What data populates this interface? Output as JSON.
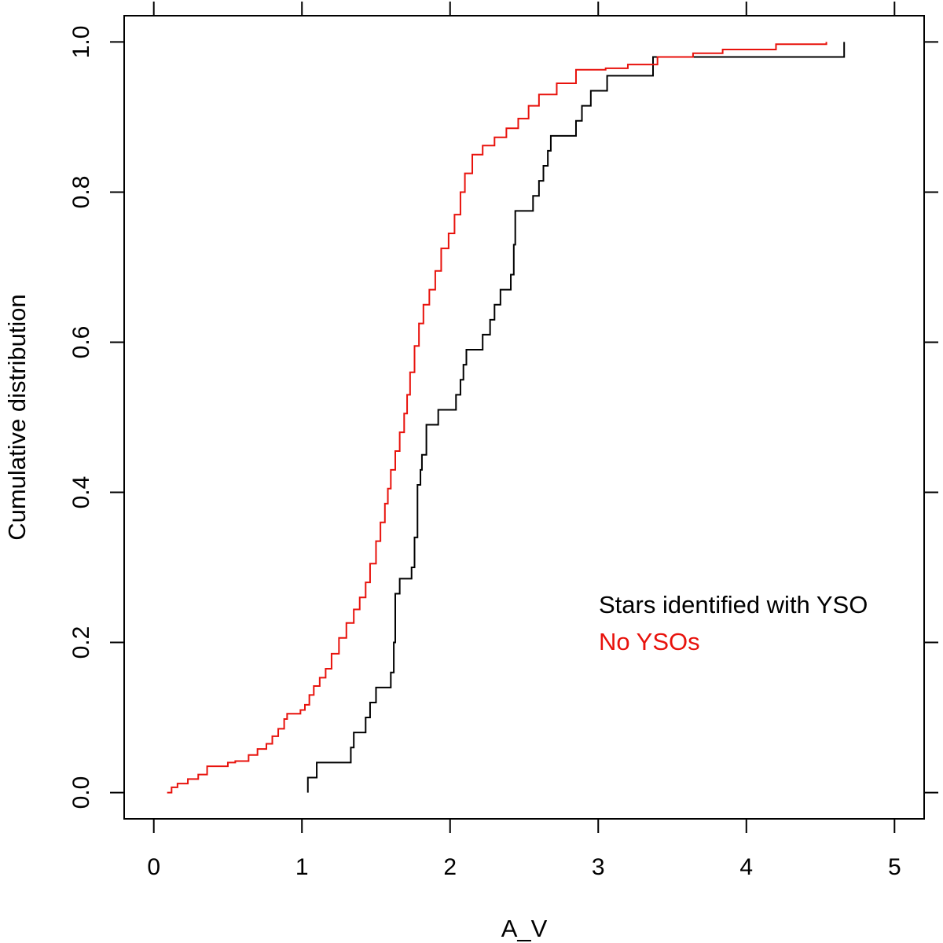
{
  "chart_data": {
    "type": "line",
    "title": "",
    "xlabel": "A_V",
    "ylabel": "Cumulative distribution",
    "xlim": [
      -0.2,
      5.2
    ],
    "ylim": [
      -0.035,
      1.035
    ],
    "xticks": [
      "0",
      "1",
      "2",
      "3",
      "4",
      "5"
    ],
    "yticks": [
      "0.0",
      "0.2",
      "0.4",
      "0.6",
      "0.8",
      "1.0"
    ],
    "grid": false,
    "legend_position": "lower-right",
    "series": [
      {
        "name": "Stars identified with YSO",
        "color": "#000000",
        "points": [
          [
            1.04,
            0.0
          ],
          [
            1.04,
            0.02
          ],
          [
            1.1,
            0.02
          ],
          [
            1.1,
            0.04
          ],
          [
            1.33,
            0.04
          ],
          [
            1.33,
            0.06
          ],
          [
            1.35,
            0.06
          ],
          [
            1.35,
            0.08
          ],
          [
            1.43,
            0.08
          ],
          [
            1.43,
            0.1
          ],
          [
            1.46,
            0.1
          ],
          [
            1.46,
            0.12
          ],
          [
            1.5,
            0.12
          ],
          [
            1.5,
            0.14
          ],
          [
            1.6,
            0.14
          ],
          [
            1.6,
            0.16
          ],
          [
            1.62,
            0.16
          ],
          [
            1.62,
            0.2
          ],
          [
            1.63,
            0.2
          ],
          [
            1.63,
            0.265
          ],
          [
            1.66,
            0.265
          ],
          [
            1.66,
            0.285
          ],
          [
            1.74,
            0.285
          ],
          [
            1.74,
            0.3
          ],
          [
            1.76,
            0.3
          ],
          [
            1.76,
            0.34
          ],
          [
            1.78,
            0.34
          ],
          [
            1.78,
            0.41
          ],
          [
            1.8,
            0.41
          ],
          [
            1.8,
            0.43
          ],
          [
            1.81,
            0.43
          ],
          [
            1.81,
            0.45
          ],
          [
            1.84,
            0.45
          ],
          [
            1.84,
            0.49
          ],
          [
            1.92,
            0.49
          ],
          [
            1.92,
            0.51
          ],
          [
            2.04,
            0.51
          ],
          [
            2.04,
            0.53
          ],
          [
            2.07,
            0.53
          ],
          [
            2.07,
            0.55
          ],
          [
            2.09,
            0.55
          ],
          [
            2.09,
            0.57
          ],
          [
            2.11,
            0.57
          ],
          [
            2.11,
            0.59
          ],
          [
            2.22,
            0.59
          ],
          [
            2.22,
            0.61
          ],
          [
            2.27,
            0.61
          ],
          [
            2.27,
            0.63
          ],
          [
            2.3,
            0.63
          ],
          [
            2.3,
            0.65
          ],
          [
            2.34,
            0.65
          ],
          [
            2.34,
            0.67
          ],
          [
            2.41,
            0.67
          ],
          [
            2.41,
            0.69
          ],
          [
            2.43,
            0.69
          ],
          [
            2.43,
            0.73
          ],
          [
            2.44,
            0.73
          ],
          [
            2.44,
            0.775
          ],
          [
            2.56,
            0.775
          ],
          [
            2.56,
            0.795
          ],
          [
            2.6,
            0.795
          ],
          [
            2.6,
            0.815
          ],
          [
            2.63,
            0.815
          ],
          [
            2.63,
            0.835
          ],
          [
            2.66,
            0.835
          ],
          [
            2.66,
            0.855
          ],
          [
            2.68,
            0.855
          ],
          [
            2.68,
            0.875
          ],
          [
            2.85,
            0.875
          ],
          [
            2.85,
            0.895
          ],
          [
            2.89,
            0.895
          ],
          [
            2.89,
            0.915
          ],
          [
            2.95,
            0.915
          ],
          [
            2.95,
            0.935
          ],
          [
            3.06,
            0.935
          ],
          [
            3.06,
            0.955
          ],
          [
            3.37,
            0.955
          ],
          [
            3.37,
            0.98
          ],
          [
            4.66,
            0.98
          ],
          [
            4.66,
            1.0
          ]
        ]
      },
      {
        "name": "No YSOs",
        "color": "#e8120c",
        "points": [
          [
            0.09,
            0.0
          ],
          [
            0.12,
            0.007
          ],
          [
            0.16,
            0.012
          ],
          [
            0.23,
            0.018
          ],
          [
            0.3,
            0.024
          ],
          [
            0.36,
            0.035
          ],
          [
            0.5,
            0.04
          ],
          [
            0.55,
            0.042
          ],
          [
            0.64,
            0.05
          ],
          [
            0.7,
            0.058
          ],
          [
            0.76,
            0.065
          ],
          [
            0.8,
            0.075
          ],
          [
            0.84,
            0.085
          ],
          [
            0.88,
            0.098
          ],
          [
            0.9,
            0.105
          ],
          [
            0.99,
            0.11
          ],
          [
            1.02,
            0.117
          ],
          [
            1.05,
            0.13
          ],
          [
            1.08,
            0.142
          ],
          [
            1.12,
            0.153
          ],
          [
            1.16,
            0.165
          ],
          [
            1.2,
            0.185
          ],
          [
            1.25,
            0.206
          ],
          [
            1.3,
            0.226
          ],
          [
            1.35,
            0.244
          ],
          [
            1.39,
            0.26
          ],
          [
            1.43,
            0.28
          ],
          [
            1.46,
            0.305
          ],
          [
            1.5,
            0.335
          ],
          [
            1.53,
            0.36
          ],
          [
            1.56,
            0.385
          ],
          [
            1.58,
            0.405
          ],
          [
            1.6,
            0.43
          ],
          [
            1.63,
            0.455
          ],
          [
            1.66,
            0.48
          ],
          [
            1.69,
            0.505
          ],
          [
            1.71,
            0.53
          ],
          [
            1.73,
            0.56
          ],
          [
            1.76,
            0.595
          ],
          [
            1.79,
            0.625
          ],
          [
            1.82,
            0.65
          ],
          [
            1.86,
            0.67
          ],
          [
            1.9,
            0.695
          ],
          [
            1.94,
            0.725
          ],
          [
            1.99,
            0.745
          ],
          [
            2.03,
            0.77
          ],
          [
            2.07,
            0.8
          ],
          [
            2.1,
            0.825
          ],
          [
            2.15,
            0.85
          ],
          [
            2.22,
            0.862
          ],
          [
            2.3,
            0.873
          ],
          [
            2.38,
            0.885
          ],
          [
            2.46,
            0.898
          ],
          [
            2.53,
            0.915
          ],
          [
            2.6,
            0.93
          ],
          [
            2.72,
            0.945
          ],
          [
            2.85,
            0.963
          ],
          [
            3.05,
            0.965
          ],
          [
            3.2,
            0.97
          ],
          [
            3.4,
            0.98
          ],
          [
            3.64,
            0.985
          ],
          [
            3.84,
            0.99
          ],
          [
            4.2,
            0.997
          ],
          [
            4.54,
            1.0
          ]
        ]
      }
    ]
  }
}
